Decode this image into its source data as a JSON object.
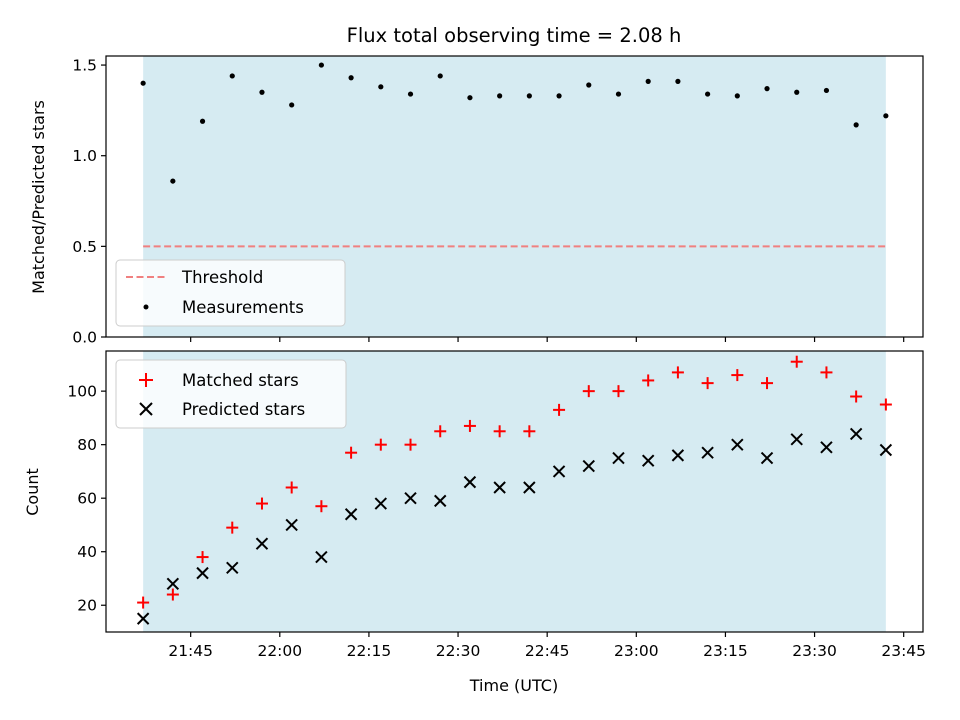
{
  "chart_data": {
    "title": "Flux total observing time = 2.08 h",
    "xlabel": "Time (UTC)",
    "x_ticks": [
      "21:45",
      "22:00",
      "22:15",
      "22:30",
      "22:45",
      "23:00",
      "23:15",
      "23:30",
      "23:45"
    ],
    "x_tick_minutes": [
      1305,
      1320,
      1335,
      1350,
      1365,
      1380,
      1395,
      1410,
      1425
    ],
    "shaded_span_colour": "#add8e6",
    "x": [
      "21:37",
      "21:42",
      "21:47",
      "21:52",
      "21:57",
      "22:02",
      "22:07",
      "22:12",
      "22:17",
      "22:22",
      "22:27",
      "22:32",
      "22:37",
      "22:42",
      "22:47",
      "22:52",
      "22:57",
      "23:02",
      "23:07",
      "23:12",
      "23:17",
      "23:22",
      "23:27",
      "23:32",
      "23:37",
      "23:42"
    ],
    "panels": [
      {
        "type": "scatter",
        "ylabel": "Matched/Predicted stars",
        "ylim": [
          0,
          1.55
        ],
        "y_ticks": [
          "0.0",
          "0.5",
          "1.0",
          "1.5"
        ],
        "y_tick_values": [
          0,
          0.5,
          1.0,
          1.5
        ],
        "legend_position": "lower-left",
        "threshold": {
          "name": "Threshold",
          "value": 0.5,
          "color": "#f08080",
          "style": "dashed"
        },
        "series": [
          {
            "name": "Measurements",
            "marker": "dot",
            "color": "#000000",
            "values": [
              1.4,
              0.86,
              1.19,
              1.44,
              1.35,
              1.28,
              1.5,
              1.43,
              1.38,
              1.34,
              1.44,
              1.32,
              1.33,
              1.33,
              1.33,
              1.39,
              1.34,
              1.41,
              1.41,
              1.34,
              1.33,
              1.37,
              1.35,
              1.36,
              1.17,
              1.22
            ]
          }
        ]
      },
      {
        "type": "scatter",
        "ylabel": "Count",
        "ylim": [
          10,
          115
        ],
        "y_ticks": [
          "20",
          "40",
          "60",
          "80",
          "100"
        ],
        "y_tick_values": [
          20,
          40,
          60,
          80,
          100
        ],
        "legend_position": "upper-left",
        "series": [
          {
            "name": "Matched stars",
            "marker": "plus",
            "color": "#ff0000",
            "values": [
              21,
              24,
              38,
              49,
              58,
              64,
              57,
              77,
              80,
              80,
              85,
              87,
              85,
              85,
              93,
              100,
              100,
              104,
              107,
              103,
              106,
              103,
              111,
              107,
              98,
              95
            ]
          },
          {
            "name": "Predicted stars",
            "marker": "x",
            "color": "#000000",
            "values": [
              15,
              28,
              32,
              34,
              43,
              50,
              38,
              54,
              58,
              60,
              59,
              66,
              64,
              64,
              70,
              72,
              75,
              74,
              76,
              77,
              80,
              75,
              82,
              79,
              84,
              78
            ]
          }
        ]
      }
    ]
  }
}
